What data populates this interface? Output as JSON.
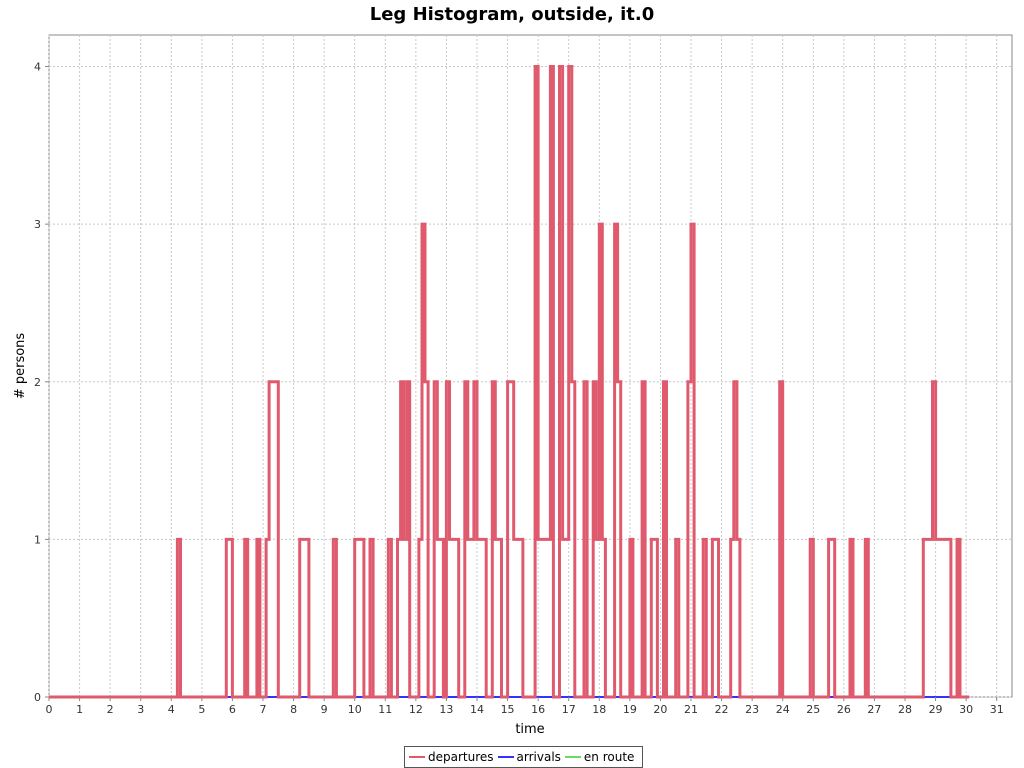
{
  "chart_data": {
    "type": "line",
    "title": "Leg Histogram, outside, it.0",
    "xlabel": "time",
    "ylabel": "# persons",
    "xlim": [
      0,
      31.5
    ],
    "ylim": [
      0,
      4.2
    ],
    "x_ticks": [
      "0",
      "1",
      "2",
      "3",
      "4",
      "5",
      "6",
      "7",
      "8",
      "9",
      "10",
      "11",
      "12",
      "13",
      "14",
      "15",
      "16",
      "17",
      "18",
      "19",
      "20",
      "21",
      "22",
      "23",
      "24",
      "25",
      "26",
      "27",
      "28",
      "29",
      "30",
      "31"
    ],
    "y_ticks": [
      "0",
      "1",
      "2",
      "3",
      "4"
    ],
    "grid": true,
    "legend_position": "bottom",
    "series": [
      {
        "name": "departures",
        "color": "#e05a6e",
        "points": [
          [
            0,
            0
          ],
          [
            4.2,
            0
          ],
          [
            4.2,
            1
          ],
          [
            4.3,
            1
          ],
          [
            4.3,
            0
          ],
          [
            5.8,
            0
          ],
          [
            5.8,
            1
          ],
          [
            6.0,
            1
          ],
          [
            6.0,
            0
          ],
          [
            6.4,
            0
          ],
          [
            6.4,
            1
          ],
          [
            6.5,
            1
          ],
          [
            6.5,
            0
          ],
          [
            6.8,
            0
          ],
          [
            6.8,
            1
          ],
          [
            6.9,
            1
          ],
          [
            6.9,
            0
          ],
          [
            7.1,
            0
          ],
          [
            7.1,
            1
          ],
          [
            7.2,
            1
          ],
          [
            7.2,
            2
          ],
          [
            7.5,
            2
          ],
          [
            7.5,
            0
          ],
          [
            8.2,
            0
          ],
          [
            8.2,
            1
          ],
          [
            8.5,
            1
          ],
          [
            8.5,
            0
          ],
          [
            9.3,
            0
          ],
          [
            9.3,
            1
          ],
          [
            9.4,
            1
          ],
          [
            9.4,
            0
          ],
          [
            10.0,
            0
          ],
          [
            10.0,
            1
          ],
          [
            10.3,
            1
          ],
          [
            10.3,
            0
          ],
          [
            10.5,
            0
          ],
          [
            10.5,
            1
          ],
          [
            10.6,
            1
          ],
          [
            10.6,
            0
          ],
          [
            11.1,
            0
          ],
          [
            11.1,
            1
          ],
          [
            11.2,
            1
          ],
          [
            11.2,
            0
          ],
          [
            11.4,
            0
          ],
          [
            11.4,
            1
          ],
          [
            11.5,
            1
          ],
          [
            11.5,
            2
          ],
          [
            11.6,
            2
          ],
          [
            11.6,
            1
          ],
          [
            11.7,
            1
          ],
          [
            11.7,
            2
          ],
          [
            11.8,
            2
          ],
          [
            11.8,
            0
          ],
          [
            12.1,
            0
          ],
          [
            12.1,
            1
          ],
          [
            12.2,
            1
          ],
          [
            12.2,
            3
          ],
          [
            12.3,
            3
          ],
          [
            12.3,
            2
          ],
          [
            12.4,
            2
          ],
          [
            12.4,
            0
          ],
          [
            12.6,
            0
          ],
          [
            12.6,
            2
          ],
          [
            12.7,
            2
          ],
          [
            12.7,
            1
          ],
          [
            12.9,
            1
          ],
          [
            12.9,
            0
          ],
          [
            13.0,
            0
          ],
          [
            13.0,
            2
          ],
          [
            13.1,
            2
          ],
          [
            13.1,
            1
          ],
          [
            13.4,
            1
          ],
          [
            13.4,
            0
          ],
          [
            13.6,
            0
          ],
          [
            13.6,
            2
          ],
          [
            13.7,
            2
          ],
          [
            13.7,
            1
          ],
          [
            13.9,
            1
          ],
          [
            13.9,
            2
          ],
          [
            14.0,
            2
          ],
          [
            14.0,
            1
          ],
          [
            14.3,
            1
          ],
          [
            14.3,
            0
          ],
          [
            14.5,
            0
          ],
          [
            14.5,
            2
          ],
          [
            14.6,
            2
          ],
          [
            14.6,
            1
          ],
          [
            14.8,
            1
          ],
          [
            14.8,
            0
          ],
          [
            15.0,
            0
          ],
          [
            15.0,
            2
          ],
          [
            15.2,
            2
          ],
          [
            15.2,
            1
          ],
          [
            15.5,
            1
          ],
          [
            15.5,
            0
          ],
          [
            15.9,
            0
          ],
          [
            15.9,
            4
          ],
          [
            16.0,
            4
          ],
          [
            16.0,
            1
          ],
          [
            16.4,
            1
          ],
          [
            16.4,
            4
          ],
          [
            16.5,
            4
          ],
          [
            16.5,
            0
          ],
          [
            16.7,
            0
          ],
          [
            16.7,
            4
          ],
          [
            16.8,
            4
          ],
          [
            16.8,
            1
          ],
          [
            17.0,
            1
          ],
          [
            17.0,
            4
          ],
          [
            17.1,
            4
          ],
          [
            17.1,
            2
          ],
          [
            17.2,
            2
          ],
          [
            17.2,
            0
          ],
          [
            17.5,
            0
          ],
          [
            17.5,
            2
          ],
          [
            17.6,
            2
          ],
          [
            17.6,
            0
          ],
          [
            17.8,
            0
          ],
          [
            17.8,
            2
          ],
          [
            17.9,
            2
          ],
          [
            17.9,
            1
          ],
          [
            18.0,
            1
          ],
          [
            18.0,
            3
          ],
          [
            18.1,
            3
          ],
          [
            18.1,
            1
          ],
          [
            18.2,
            1
          ],
          [
            18.2,
            0
          ],
          [
            18.5,
            0
          ],
          [
            18.5,
            3
          ],
          [
            18.6,
            3
          ],
          [
            18.6,
            2
          ],
          [
            18.7,
            2
          ],
          [
            18.7,
            0
          ],
          [
            19.0,
            0
          ],
          [
            19.0,
            1
          ],
          [
            19.1,
            1
          ],
          [
            19.1,
            0
          ],
          [
            19.4,
            0
          ],
          [
            19.4,
            2
          ],
          [
            19.5,
            2
          ],
          [
            19.5,
            0
          ],
          [
            19.7,
            0
          ],
          [
            19.7,
            1
          ],
          [
            19.9,
            1
          ],
          [
            19.9,
            0
          ],
          [
            20.1,
            0
          ],
          [
            20.1,
            2
          ],
          [
            20.2,
            2
          ],
          [
            20.2,
            0
          ],
          [
            20.5,
            0
          ],
          [
            20.5,
            1
          ],
          [
            20.6,
            1
          ],
          [
            20.6,
            0
          ],
          [
            20.9,
            0
          ],
          [
            20.9,
            2
          ],
          [
            21.0,
            2
          ],
          [
            21.0,
            3
          ],
          [
            21.1,
            3
          ],
          [
            21.1,
            0
          ],
          [
            21.4,
            0
          ],
          [
            21.4,
            1
          ],
          [
            21.5,
            1
          ],
          [
            21.5,
            0
          ],
          [
            21.7,
            0
          ],
          [
            21.7,
            1
          ],
          [
            21.9,
            1
          ],
          [
            21.9,
            0
          ],
          [
            22.3,
            0
          ],
          [
            22.3,
            1
          ],
          [
            22.4,
            1
          ],
          [
            22.4,
            2
          ],
          [
            22.5,
            2
          ],
          [
            22.5,
            1
          ],
          [
            22.6,
            1
          ],
          [
            22.6,
            0
          ],
          [
            23.9,
            0
          ],
          [
            23.9,
            2
          ],
          [
            24.0,
            2
          ],
          [
            24.0,
            0
          ],
          [
            24.9,
            0
          ],
          [
            24.9,
            1
          ],
          [
            25.0,
            1
          ],
          [
            25.0,
            0
          ],
          [
            25.5,
            0
          ],
          [
            25.5,
            1
          ],
          [
            25.7,
            1
          ],
          [
            25.7,
            0
          ],
          [
            26.2,
            0
          ],
          [
            26.2,
            1
          ],
          [
            26.3,
            1
          ],
          [
            26.3,
            0
          ],
          [
            26.7,
            0
          ],
          [
            26.7,
            1
          ],
          [
            26.8,
            1
          ],
          [
            26.8,
            0
          ],
          [
            28.6,
            0
          ],
          [
            28.6,
            1
          ],
          [
            28.9,
            1
          ],
          [
            28.9,
            2
          ],
          [
            29.0,
            2
          ],
          [
            29.0,
            1
          ],
          [
            29.3,
            1
          ],
          [
            29.3,
            1
          ],
          [
            29.5,
            1
          ],
          [
            29.5,
            0
          ],
          [
            29.7,
            0
          ],
          [
            29.7,
            1
          ],
          [
            29.8,
            1
          ],
          [
            29.8,
            0
          ],
          [
            30.1,
            0
          ]
        ]
      },
      {
        "name": "arrivals",
        "color": "#3333ff",
        "points": [
          [
            0,
            0
          ],
          [
            30.1,
            0
          ]
        ]
      },
      {
        "name": "en route",
        "color": "#66dd66",
        "points": [
          [
            0,
            0
          ],
          [
            30.1,
            0
          ]
        ]
      }
    ]
  }
}
